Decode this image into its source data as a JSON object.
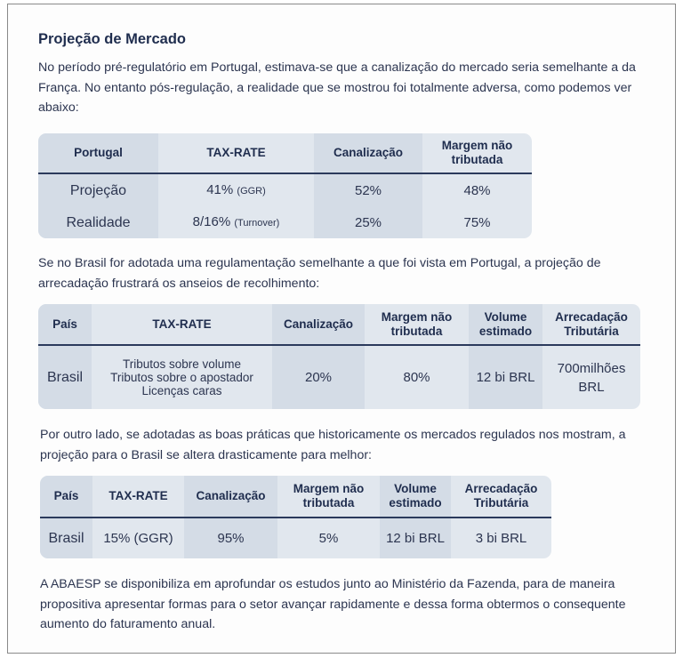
{
  "title": "Projeção de Mercado",
  "paragraphs": [
    "No período pré-regulatório em Portugal, estimava-se que a canalização do mercado seria semelhante a da França. No entanto pós-regulação, a realidade que se mostrou foi totalmente adversa, como podemos ver abaixo:",
    "Se no Brasil for adotada uma regulamentação semelhante a que foi vista em Portugal, a projeção de arrecadação frustrará os anseios de recolhimento:",
    "Por outro lado, se adotadas as boas práticas que historicamente os mercados regulados nos mostram, a projeção para o Brasil se altera drasticamente para melhor:",
    "A ABAESP se disponibiliza em aprofundar os estudos junto ao Ministério da Fazenda, para de maneira propositiva apresentar formas para o setor avançar rapidamente e dessa forma obtermos o consequente aumento do faturamento anual."
  ],
  "table_portugal": {
    "headers": [
      "Portugal",
      "TAX-RATE",
      "Canalização",
      "Margem não tributada"
    ],
    "rows": [
      {
        "label": "Projeção",
        "tax": "41%",
        "tax_note": "(GGR)",
        "canal": "52%",
        "margem": "48%"
      },
      {
        "label": "Realidade",
        "tax": "8/16%",
        "tax_note": "(Turnover)",
        "canal": "25%",
        "margem": "75%"
      }
    ]
  },
  "table_brasil_atual": {
    "headers": [
      "País",
      "TAX-RATE",
      "Canalização",
      "Margem não tributada",
      "Volume estimado",
      "Arrecadação Tributária"
    ],
    "row": {
      "pais": "Brasil",
      "tax_lines": [
        "Tributos sobre volume",
        "Tributos sobre o apostador",
        "Licenças caras"
      ],
      "canal": "20%",
      "margem": "80%",
      "volume": "12 bi BRL",
      "arrecadacao": "700milhões BRL"
    }
  },
  "table_brasil_boas_praticas": {
    "headers": [
      "País",
      "TAX-RATE",
      "Canalização",
      "Margem não tributada",
      "Volume estimado",
      "Arrecadação Tributária"
    ],
    "row": {
      "pais": "Brasil",
      "tax": "15% (GGR)",
      "canal": "95%",
      "margem": "5%",
      "volume": "12 bi BRL",
      "arrecadacao": "3 bi BRL"
    }
  },
  "colors": {
    "heading": "#1f2d4e",
    "table_bg": "#e1e7ee",
    "table_col_shade": "#d4dce6"
  }
}
